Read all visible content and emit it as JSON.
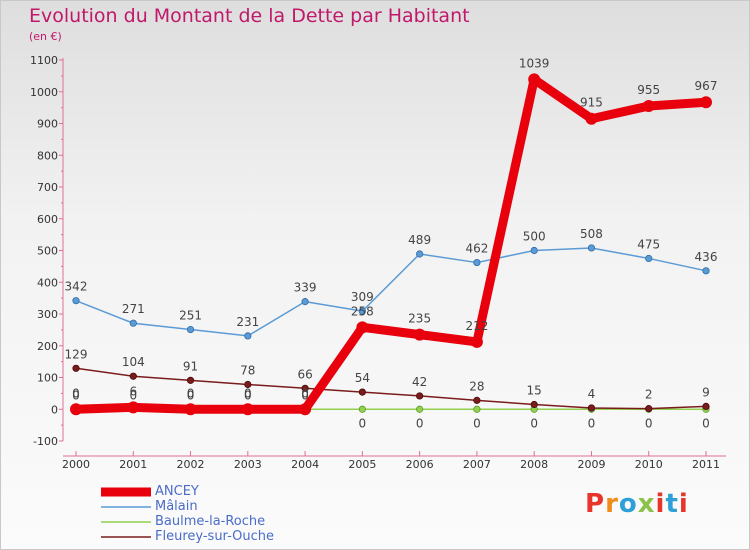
{
  "header": {
    "title": "Evolution du Montant de la Dette par Habitant",
    "subtitle": "(en €)"
  },
  "logo": {
    "text": "Proxiti",
    "colors": [
      "#e8352b",
      "#f08c1a",
      "#2f9fd8",
      "#8bc34a",
      "#e8352b",
      "#2f9fd8",
      "#e8352b"
    ]
  },
  "chart_data": {
    "type": "line",
    "x": [
      "2000",
      "2001",
      "2002",
      "2003",
      "2004",
      "2005",
      "2006",
      "2007",
      "2008",
      "2009",
      "2010",
      "2011"
    ],
    "ylim": [
      -100,
      1100
    ],
    "yticks": [
      "-100",
      "0",
      "100",
      "200",
      "300",
      "400",
      "500",
      "600",
      "700",
      "800",
      "900",
      "1000",
      "1100"
    ],
    "series": [
      {
        "name": "ANCEY",
        "color": "#e8000c",
        "values": [
          0,
          6,
          0,
          0,
          0,
          258,
          235,
          212,
          1039,
          915,
          955,
          967
        ],
        "labels": [
          "0",
          "6",
          "0",
          "0",
          "0",
          "258",
          "235",
          "212",
          "1039",
          "915",
          "955",
          "967"
        ]
      },
      {
        "name": "Mâlain",
        "color": "#5b9bd5",
        "values": [
          342,
          271,
          251,
          231,
          339,
          309,
          489,
          462,
          500,
          508,
          475,
          436
        ],
        "labels": [
          "342",
          "271",
          "251",
          "231",
          "339",
          "309",
          "489",
          "462",
          "500",
          "508",
          "475",
          "436"
        ]
      },
      {
        "name": "Baulme-la-Roche",
        "color": "#92d050",
        "values": [
          0,
          0,
          0,
          0,
          0,
          0,
          0,
          0,
          0,
          0,
          0,
          0
        ],
        "labels": [
          "0",
          "0",
          "0",
          "0",
          "0",
          "0",
          "0",
          "0",
          "0",
          "0",
          "0",
          "0"
        ]
      },
      {
        "name": "Fleurey-sur-Ouche",
        "color": "#7a1c1c",
        "values": [
          129,
          104,
          91,
          78,
          66,
          54,
          42,
          28,
          15,
          4,
          2,
          9
        ],
        "labels": [
          "129",
          "104",
          "91",
          "78",
          "66",
          "54",
          "42",
          "28",
          "15",
          "4",
          "2",
          "9"
        ]
      }
    ],
    "grid": false,
    "legend_position": "bottom-left"
  }
}
